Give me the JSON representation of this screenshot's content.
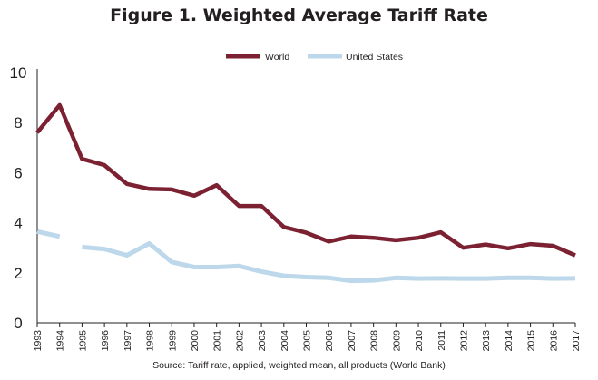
{
  "chart_data": {
    "type": "line",
    "title": "Figure 1. Weighted Average Tariff Rate",
    "xlabel": "",
    "ylabel": "",
    "ylim": [
      0,
      10
    ],
    "yticks": [
      "0",
      "2",
      "4",
      "6",
      "8",
      "10"
    ],
    "categories": [
      "1993",
      "1994",
      "1995",
      "1996",
      "1997",
      "1998",
      "1999",
      "2000",
      "2001",
      "2002",
      "2003",
      "2004",
      "2005",
      "2006",
      "2007",
      "2008",
      "2009",
      "2010",
      "2011",
      "2012",
      "2013",
      "2014",
      "2015",
      "2016",
      "2017"
    ],
    "series": [
      {
        "name": "World",
        "color": "#7b2132",
        "values": [
          7.6,
          8.7,
          6.55,
          6.3,
          5.55,
          5.35,
          5.33,
          5.08,
          5.5,
          4.67,
          4.67,
          3.83,
          3.6,
          3.25,
          3.45,
          3.4,
          3.3,
          3.4,
          3.62,
          3.0,
          3.13,
          2.98,
          3.15,
          3.08,
          2.7
        ]
      },
      {
        "name": "United States",
        "color": "#bcd8ea",
        "values": [
          3.65,
          3.45,
          null,
          2.95,
          2.7,
          3.17,
          2.43,
          2.23,
          2.23,
          2.27,
          2.05,
          1.88,
          1.83,
          1.8,
          1.68,
          1.7,
          1.8,
          1.77,
          1.78,
          1.77,
          1.77,
          1.8,
          1.8,
          1.77,
          1.78
        ],
        "partial_segments": [
          {
            "from_index": 2,
            "from_value": 3.03
          }
        ]
      }
    ],
    "legend_position": "top-center",
    "grid": false,
    "source": "Source: Tariff rate, applied, weighted mean, all products (World Bank)"
  }
}
